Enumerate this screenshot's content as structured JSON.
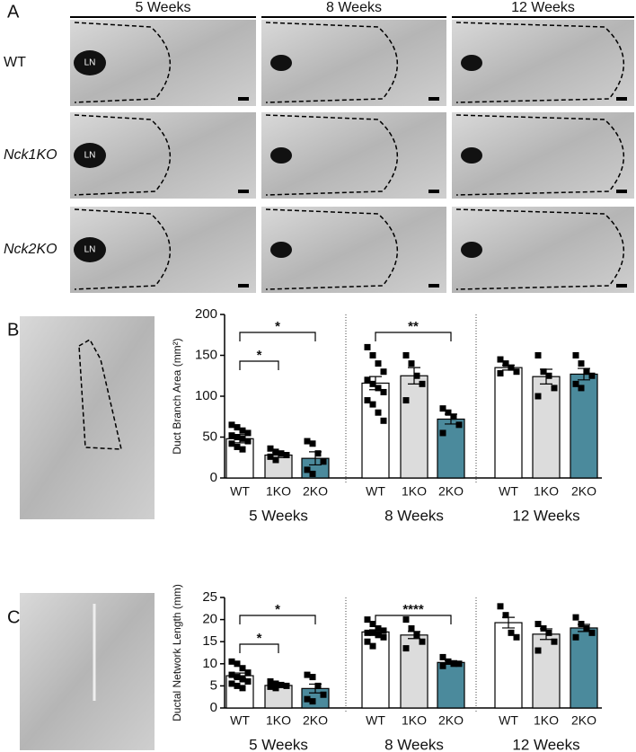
{
  "panel_a": {
    "letter": "A",
    "columns": [
      "5 Weeks",
      "8 Weeks",
      "12 Weeks"
    ],
    "rows": [
      "WT",
      "Nck1KO",
      "Nck2KO"
    ],
    "photo_label": "LN"
  },
  "panel_b_letter": "B",
  "panel_c_letter": "C",
  "chart_data": [
    {
      "type": "bar",
      "ylabel": "Duct Branch Area (mm²)",
      "categories": [
        "WT",
        "1KO",
        "2KO"
      ],
      "colors": [
        "#ffffff",
        "#dcdcdc",
        "#4b8a9c"
      ],
      "ylim": [
        0,
        200
      ],
      "yticks": [
        0,
        50,
        100,
        150,
        200
      ],
      "groups": [
        {
          "name": "5 Weeks",
          "values": [
            48,
            28,
            24
          ],
          "errors": [
            5,
            3,
            8
          ],
          "points": [
            [
              65,
              62,
              58,
              55,
              52,
              50,
              48,
              45,
              42,
              38,
              35
            ],
            [
              36,
              32,
              30,
              28,
              26,
              22
            ],
            [
              45,
              42,
              30,
              20,
              10,
              5
            ]
          ],
          "annotations": [
            {
              "label": "*",
              "from": "WT",
              "to": "1KO"
            },
            {
              "label": "*",
              "from": "WT",
              "to": "2KO"
            }
          ]
        },
        {
          "name": "8 Weeks",
          "values": [
            116,
            125,
            72
          ],
          "errors": [
            8,
            10,
            6
          ],
          "points": [
            [
              160,
              150,
              140,
              130,
              120,
              115,
              110,
              105,
              95,
              90,
              80,
              70
            ],
            [
              150,
              140,
              125,
              115,
              95
            ],
            [
              85,
              80,
              75,
              65,
              55
            ]
          ],
          "annotations": [
            {
              "label": "**",
              "from": "WT",
              "to": "2KO"
            }
          ]
        },
        {
          "name": "12 Weeks",
          "values": [
            135,
            124,
            127
          ],
          "errors": [
            3,
            9,
            7
          ],
          "points": [
            [
              145,
              140,
              135,
              130,
              128
            ],
            [
              150,
              130,
              125,
              110,
              100
            ],
            [
              150,
              140,
              130,
              125,
              115,
              110
            ]
          ],
          "annotations": []
        }
      ]
    },
    {
      "type": "bar",
      "ylabel": "Ductal Network Length (mm)",
      "categories": [
        "WT",
        "1KO",
        "2KO"
      ],
      "colors": [
        "#ffffff",
        "#dcdcdc",
        "#4b8a9c"
      ],
      "ylim": [
        0,
        25
      ],
      "yticks": [
        0,
        5,
        10,
        15,
        20,
        25
      ],
      "groups": [
        {
          "name": "5 Weeks",
          "values": [
            7.3,
            5.1,
            4.4
          ],
          "errors": [
            0.6,
            0.3,
            1.0
          ],
          "points": [
            [
              10.5,
              10,
              9,
              8,
              7.5,
              7,
              6.5,
              6,
              5.5,
              5,
              4.5
            ],
            [
              6,
              5.5,
              5.2,
              5,
              4.8,
              4.5
            ],
            [
              7.5,
              7,
              5,
              3,
              2,
              1.5
            ]
          ],
          "annotations": [
            {
              "label": "*",
              "from": "WT",
              "to": "1KO"
            },
            {
              "label": "*",
              "from": "WT",
              "to": "2KO"
            }
          ]
        },
        {
          "name": "8 Weeks",
          "values": [
            17.2,
            16.5,
            10.3
          ],
          "errors": [
            0.5,
            0.8,
            0.4
          ],
          "points": [
            [
              20,
              19,
              18,
              17.5,
              17,
              17,
              16.5,
              16,
              15,
              14
            ],
            [
              20,
              18,
              16.5,
              15,
              13.5
            ],
            [
              11.5,
              10.5,
              10,
              10,
              9.5
            ]
          ],
          "annotations": [
            {
              "label": "****",
              "from": "WT",
              "to": "2KO"
            }
          ]
        },
        {
          "name": "12 Weeks",
          "values": [
            19.3,
            16.7,
            18.1
          ],
          "errors": [
            1.2,
            1.2,
            0.8
          ],
          "points": [
            [
              23,
              21,
              17,
              16
            ],
            [
              19,
              18,
              17,
              15,
              13
            ],
            [
              20.5,
              19,
              18,
              17,
              16
            ]
          ],
          "annotations": []
        }
      ]
    }
  ]
}
